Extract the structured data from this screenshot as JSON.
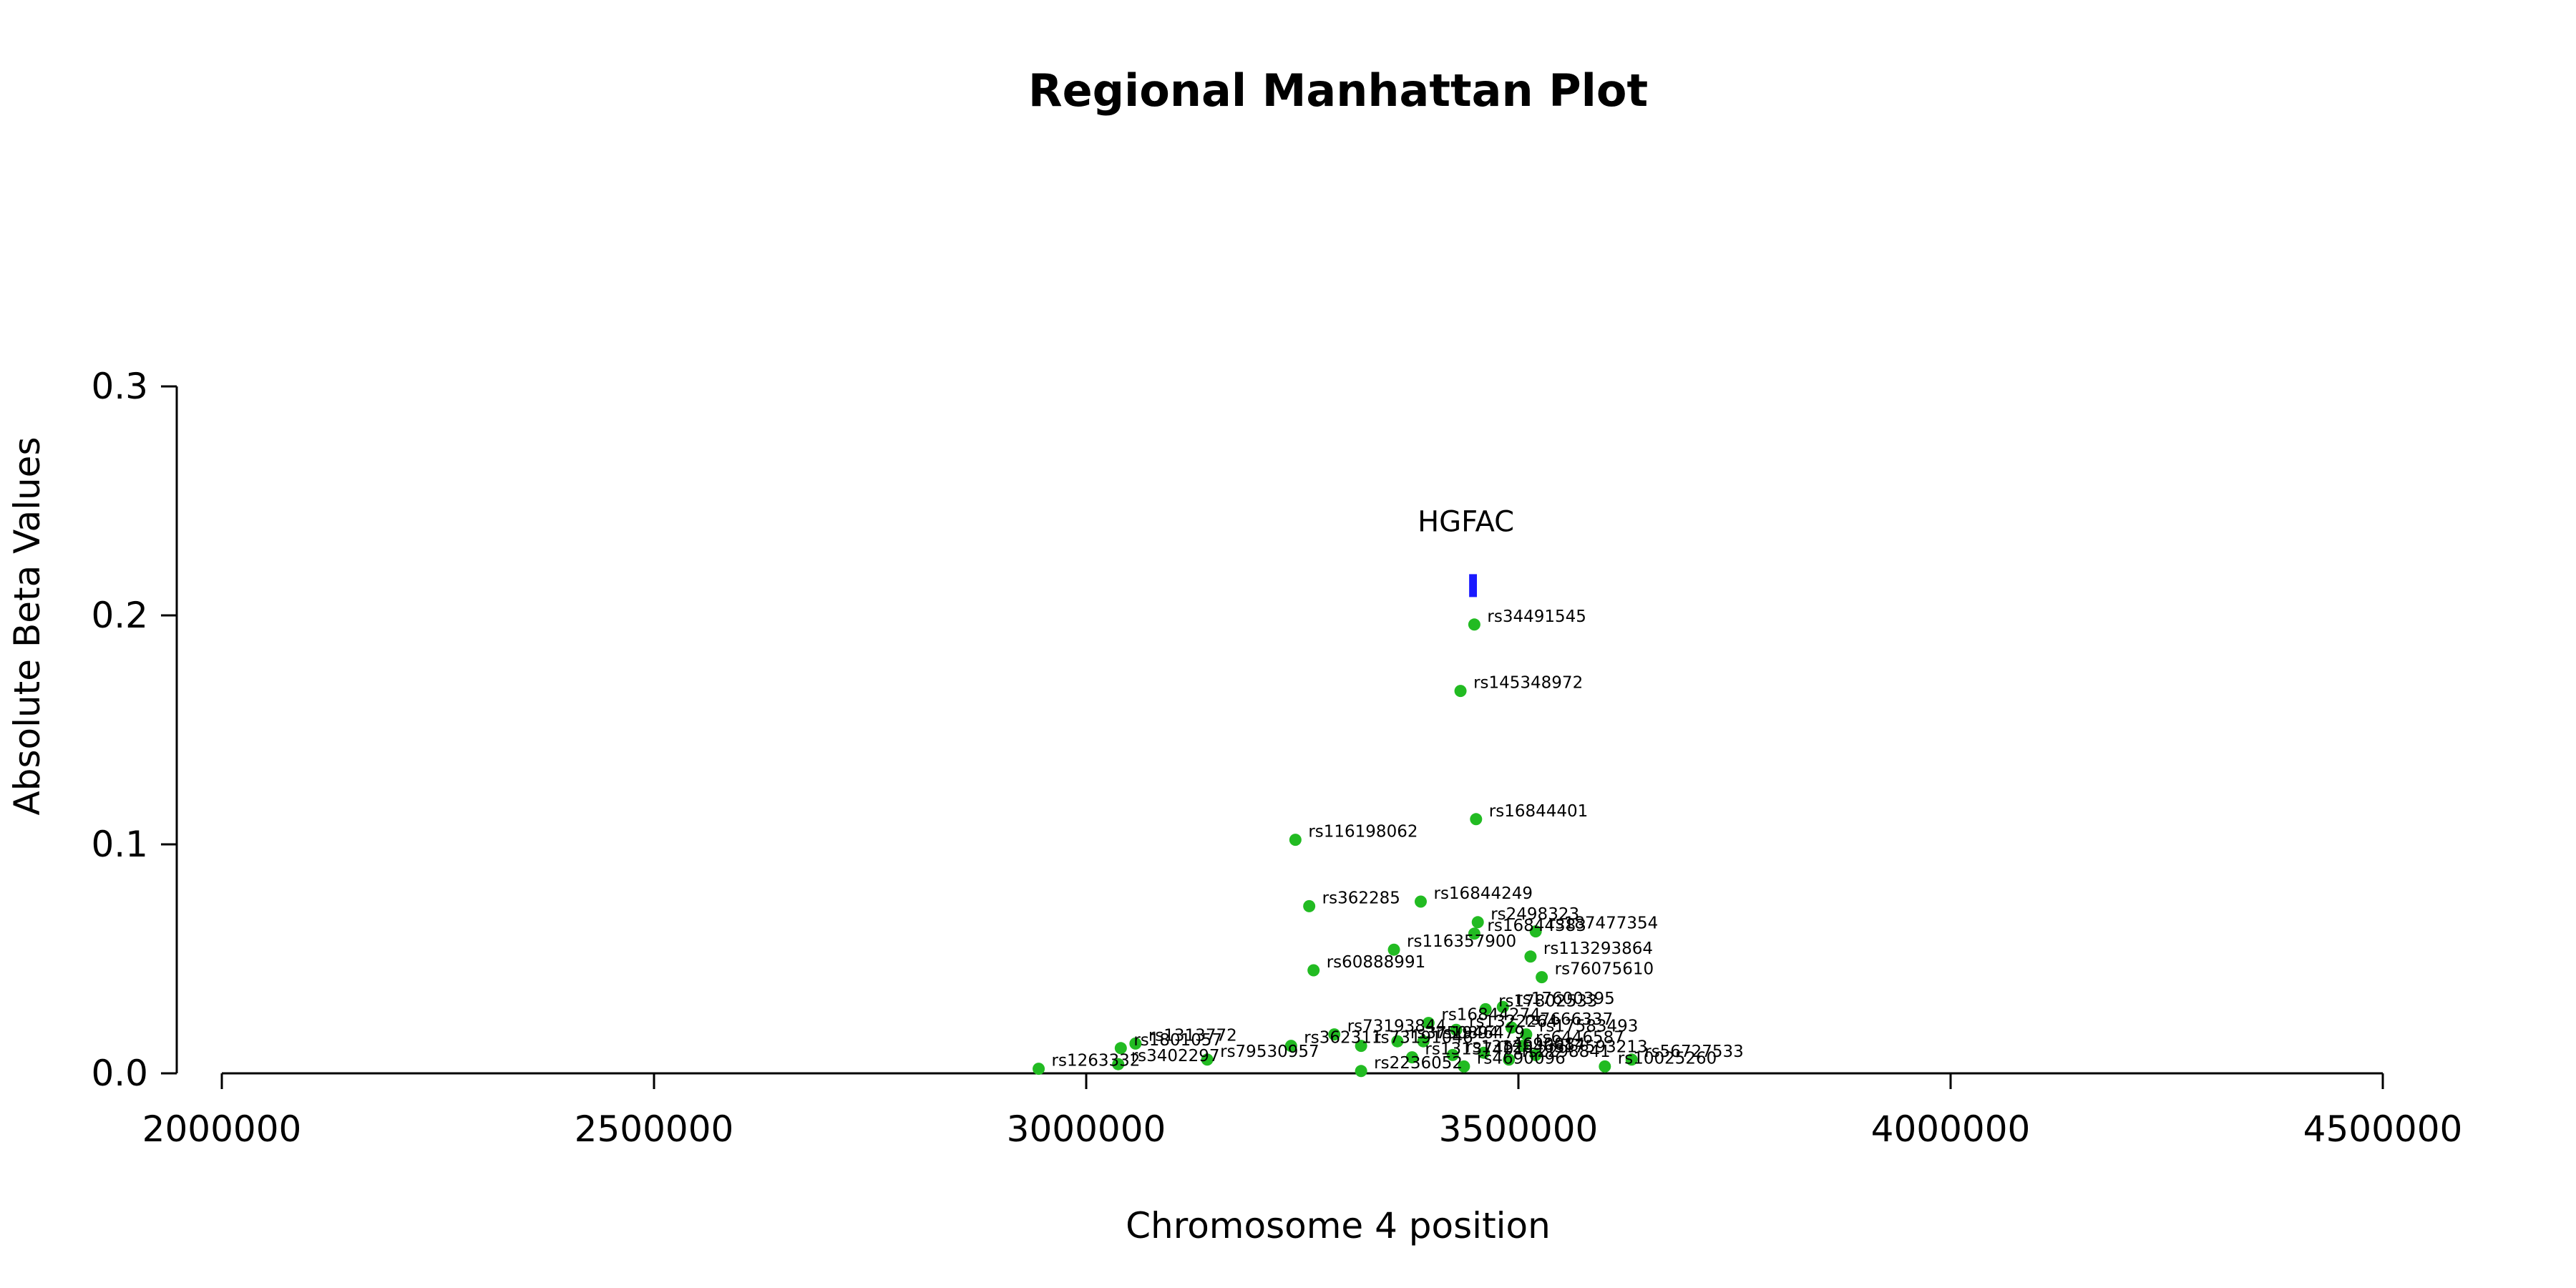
{
  "chart_data": {
    "type": "scatter",
    "title": "Regional Manhattan Plot",
    "xlabel": "Chromosome 4 position",
    "ylabel": "Absolute Beta Values",
    "xlim": [
      2000000,
      4500000
    ],
    "ylim": [
      0,
      0.3
    ],
    "x_ticks": [
      2000000,
      2500000,
      3000000,
      3500000,
      4000000,
      4500000
    ],
    "x_tick_labels": [
      "2000000",
      "2500000",
      "3000000",
      "3500000",
      "4000000",
      "4500000"
    ],
    "y_ticks": [
      0,
      0.1,
      0.2,
      0.3
    ],
    "y_tick_labels": [
      "0.0",
      "0.1",
      "0.2",
      "0.3"
    ],
    "grid": false,
    "point_color": "#22bb22",
    "gene": {
      "name": "HGFAC",
      "start": 3443000,
      "end": 3452000,
      "y_low": 0.208,
      "y_high": 0.218,
      "color": "#1a1aff"
    },
    "points": [
      {
        "label": "rs34491545",
        "x": 3449000,
        "y": 0.196
      },
      {
        "label": "rs145348972",
        "x": 3433000,
        "y": 0.167
      },
      {
        "label": "rs16844401",
        "x": 3451000,
        "y": 0.111
      },
      {
        "label": "rs116198062",
        "x": 3242000,
        "y": 0.102
      },
      {
        "label": "rs362285",
        "x": 3258000,
        "y": 0.073
      },
      {
        "label": "rs16844249",
        "x": 3387000,
        "y": 0.075
      },
      {
        "label": "rs2498323",
        "x": 3453000,
        "y": 0.066
      },
      {
        "label": "rs16844383",
        "x": 3449000,
        "y": 0.061
      },
      {
        "label": "rs187477354",
        "x": 3520000,
        "y": 0.062
      },
      {
        "label": "rs116357900",
        "x": 3356000,
        "y": 0.054
      },
      {
        "label": "rs113293864",
        "x": 3514000,
        "y": 0.051
      },
      {
        "label": "rs60888991",
        "x": 3263000,
        "y": 0.045
      },
      {
        "label": "rs76075610",
        "x": 3527000,
        "y": 0.042
      },
      {
        "label": "rs17600395",
        "x": 3482000,
        "y": 0.029
      },
      {
        "label": "rs17802533",
        "x": 3462000,
        "y": 0.028
      },
      {
        "label": "rs16844274",
        "x": 3396000,
        "y": 0.022
      },
      {
        "label": "rs7666337",
        "x": 3492000,
        "y": 0.02
      },
      {
        "label": "rs1322264",
        "x": 3428000,
        "y": 0.019
      },
      {
        "label": "rs17583493",
        "x": 3509000,
        "y": 0.017
      },
      {
        "label": "rs73193844",
        "x": 3287000,
        "y": 0.017
      },
      {
        "label": "rs1313772",
        "x": 3057000,
        "y": 0.013
      },
      {
        "label": "rs1801057",
        "x": 3040000,
        "y": 0.011
      },
      {
        "label": "rs362311",
        "x": 3237000,
        "y": 0.012
      },
      {
        "label": "rs73191046",
        "x": 3318000,
        "y": 0.012
      },
      {
        "label": "rs3750894",
        "x": 3360000,
        "y": 0.014
      },
      {
        "label": "rs1946479",
        "x": 3390000,
        "y": 0.014
      },
      {
        "label": "rs6446587",
        "x": 3505000,
        "y": 0.012
      },
      {
        "label": "rs79530957",
        "x": 3140000,
        "y": 0.006
      },
      {
        "label": "rs13137401",
        "x": 3377000,
        "y": 0.007
      },
      {
        "label": "rs13128463",
        "x": 3424000,
        "y": 0.008
      },
      {
        "label": "rs4690084",
        "x": 3460000,
        "y": 0.009
      },
      {
        "label": "rs2298841",
        "x": 3489000,
        "y": 0.006
      },
      {
        "label": "rs17593213",
        "x": 3520000,
        "y": 0.008
      },
      {
        "label": "rs56727533",
        "x": 3631000,
        "y": 0.006
      },
      {
        "label": "rs1263332",
        "x": 2945000,
        "y": 0.002
      },
      {
        "label": "rs3402297",
        "x": 3037000,
        "y": 0.004
      },
      {
        "label": "rs2236052",
        "x": 3318000,
        "y": 0.001
      },
      {
        "label": "rs4690096",
        "x": 3437000,
        "y": 0.003
      },
      {
        "label": "rs10025260",
        "x": 3600000,
        "y": 0.003
      }
    ]
  }
}
